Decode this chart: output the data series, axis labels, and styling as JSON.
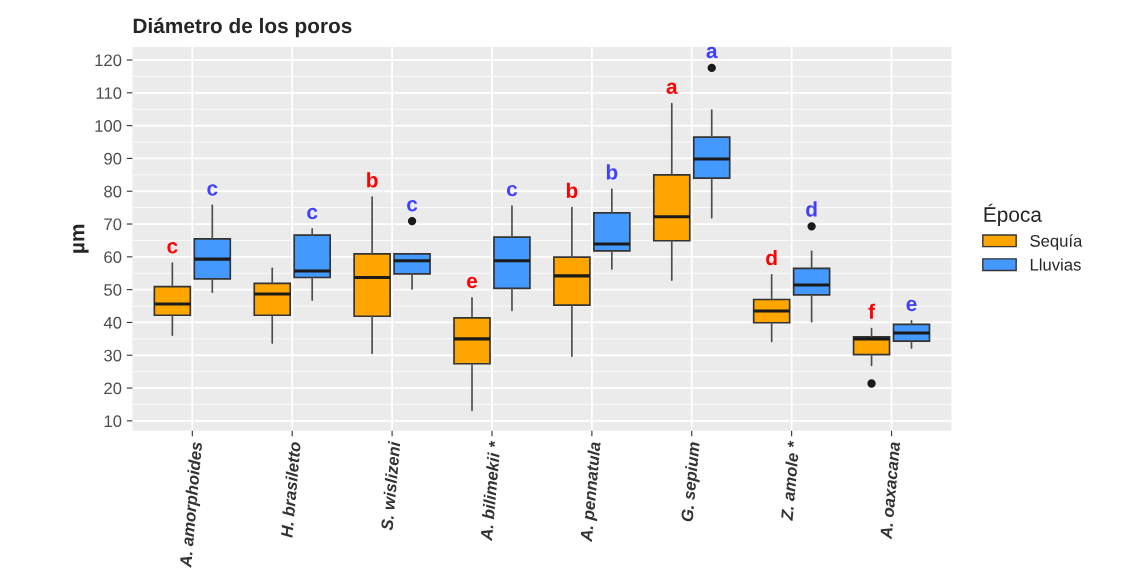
{
  "chart_data": {
    "type": "box",
    "title": "Diámetro de los poros",
    "ylabel": "µm",
    "legend_title": "Época",
    "legend": "right",
    "grid": true,
    "categories": [
      "A. amorphoides",
      "H. brasiletto",
      "S. wislizeni",
      "A. bilimekii *",
      "A. pennatula",
      "G. sepium",
      "Z. amole *",
      "A. oaxacana"
    ],
    "ylim": [
      7,
      124
    ],
    "yticks": [
      10,
      20,
      30,
      40,
      50,
      60,
      70,
      80,
      90,
      100,
      110,
      120
    ],
    "series": [
      {
        "name": "Sequía",
        "color": "#ffa500",
        "value_labels": [
          "c",
          null,
          "b",
          "e",
          "b",
          "a",
          "d",
          "f"
        ],
        "boxes": [
          {
            "low": 36.1,
            "q1": 42.2,
            "median": 45.6,
            "q3": 50.9,
            "high": 58.1
          },
          {
            "low": 33.7,
            "q1": 42.2,
            "median": 48.7,
            "q3": 51.9,
            "high": 56.5
          },
          {
            "low": 30.6,
            "q1": 41.9,
            "median": 53.7,
            "q3": 60.9,
            "high": 78.2
          },
          {
            "low": 13.2,
            "q1": 27.4,
            "median": 35.0,
            "q3": 41.4,
            "high": 47.5
          },
          {
            "low": 29.7,
            "q1": 45.3,
            "median": 54.2,
            "q3": 59.9,
            "high": 75.0
          },
          {
            "low": 52.9,
            "q1": 64.9,
            "median": 72.2,
            "q3": 85.0,
            "high": 106.7
          },
          {
            "low": 34.2,
            "q1": 39.9,
            "median": 43.5,
            "q3": 47.0,
            "high": 54.5
          },
          {
            "low": 26.9,
            "q1": 30.2,
            "median": 35.0,
            "q3": 35.6,
            "high": 38.1,
            "outliers": [
              21.4
            ]
          }
        ]
      },
      {
        "name": "Lluvias",
        "color": "#4499ff",
        "value_labels": [
          "c",
          "c",
          "c",
          "c",
          "b",
          "a",
          "d",
          "e"
        ],
        "boxes": [
          {
            "low": 49.2,
            "q1": 53.3,
            "median": 59.3,
            "q3": 65.5,
            "high": 75.7
          },
          {
            "low": 46.8,
            "q1": 53.7,
            "median": 55.7,
            "q3": 66.6,
            "high": 68.5
          },
          {
            "low": 50.2,
            "q1": 54.8,
            "median": 58.8,
            "q3": 60.9,
            "high": 60.9,
            "outliers": [
              70.9
            ]
          },
          {
            "low": 43.7,
            "q1": 50.4,
            "median": 58.8,
            "q3": 66.0,
            "high": 75.5
          },
          {
            "low": 56.3,
            "q1": 61.8,
            "median": 63.9,
            "q3": 73.4,
            "high": 80.6
          },
          {
            "low": 71.9,
            "q1": 84.0,
            "median": 89.8,
            "q3": 96.5,
            "high": 104.7,
            "outliers": [
              117.6
            ]
          },
          {
            "low": 40.2,
            "q1": 48.4,
            "median": 51.4,
            "q3": 56.5,
            "high": 61.7,
            "outliers": [
              69.3
            ]
          },
          {
            "low": 32.2,
            "q1": 34.3,
            "median": 36.8,
            "q3": 39.4,
            "high": 40.5
          }
        ]
      }
    ]
  }
}
